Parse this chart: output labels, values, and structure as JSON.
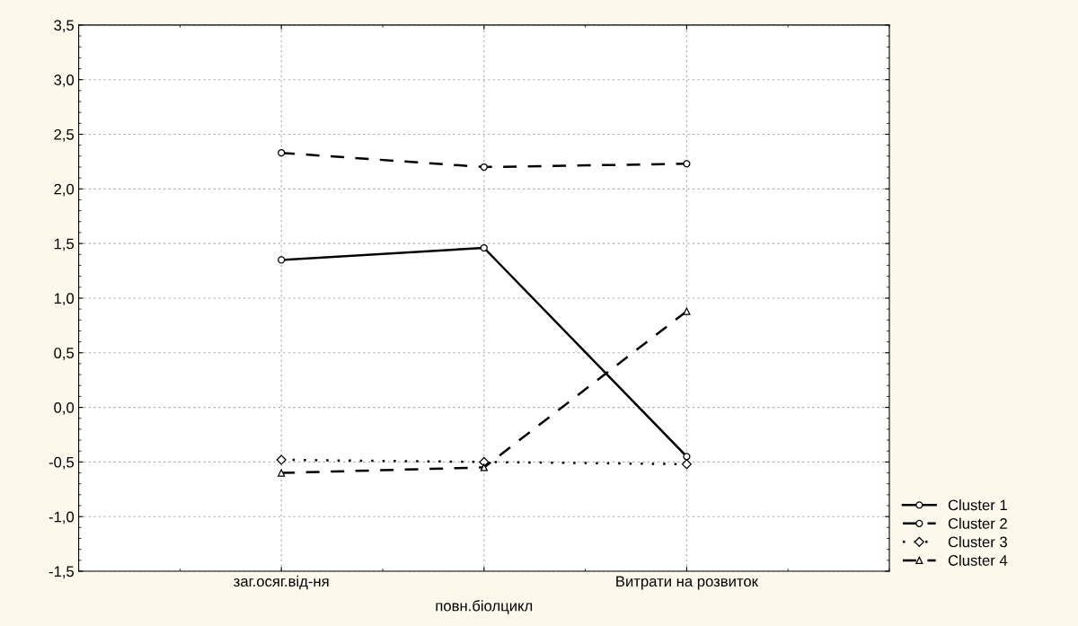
{
  "chart_data": {
    "type": "line",
    "categories": [
      "заг.осяг.від-ня",
      "повн.біолцикл",
      "Витрати на розвиток"
    ],
    "series": [
      {
        "name": "Cluster 1",
        "color": "#000000",
        "values": [
          1.35,
          1.46,
          -0.45
        ],
        "line_style": "solid",
        "marker": "circle"
      },
      {
        "name": "Cluster 2",
        "color": "#000000",
        "values": [
          2.33,
          2.2,
          2.23
        ],
        "line_style": "dashed",
        "marker": "circle"
      },
      {
        "name": "Cluster 3",
        "color": "#000000",
        "values": [
          -0.48,
          -0.5,
          -0.52
        ],
        "line_style": "dotted",
        "marker": "diamond"
      },
      {
        "name": "Cluster 4",
        "color": "#000000",
        "values": [
          -0.6,
          -0.55,
          0.88
        ],
        "line_style": "dashed",
        "marker": "triangle"
      }
    ],
    "ylim": [
      -1.5,
      3.5
    ],
    "yticks": [
      {
        "value": -1.5,
        "label": "-1,5"
      },
      {
        "value": -1.0,
        "label": "-1,0"
      },
      {
        "value": -0.5,
        "label": "-0,5"
      },
      {
        "value": 0.0,
        "label": "0,0"
      },
      {
        "value": 0.5,
        "label": "0,5"
      },
      {
        "value": 1.0,
        "label": "1,0"
      },
      {
        "value": 1.5,
        "label": "1,5"
      },
      {
        "value": 2.0,
        "label": "2,0"
      },
      {
        "value": 2.5,
        "label": "2,5"
      },
      {
        "value": 3.0,
        "label": "3,0"
      },
      {
        "value": 3.5,
        "label": "3,5"
      }
    ],
    "grid": true,
    "legend": "bottom right"
  }
}
